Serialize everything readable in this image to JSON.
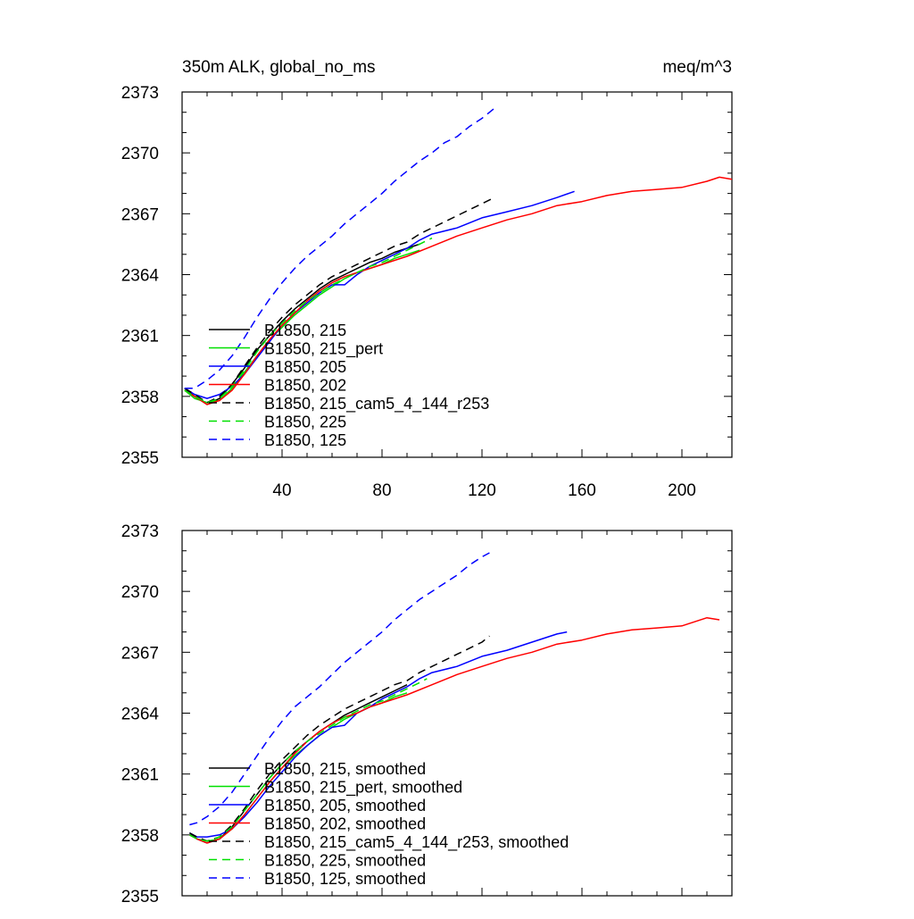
{
  "chart_data": [
    {
      "type": "line",
      "title_left": "350m ALK, global_no_ms",
      "title_right": "meq/m^3",
      "xlim": [
        0,
        220
      ],
      "ylim": [
        2355,
        2373
      ],
      "xticks": [
        40,
        80,
        120,
        160,
        200
      ],
      "yticks": [
        2355,
        2358,
        2361,
        2364,
        2367,
        2370,
        2373
      ],
      "xtick_labels": [
        "40",
        "80",
        "120",
        "160",
        "200"
      ],
      "ytick_labels": [
        "2355",
        "2358",
        "2361",
        "2364",
        "2367",
        "2370",
        "2373"
      ],
      "legend_position": "lower-left",
      "series": [
        {
          "name": "B1850, 215",
          "color": "#000000",
          "dash": "solid",
          "x": [
            1,
            5,
            10,
            15,
            20,
            25,
            30,
            35,
            40,
            45,
            50,
            55,
            60,
            65,
            70,
            75,
            80,
            85,
            90,
            95
          ],
          "y": [
            2358.4,
            2358.0,
            2357.6,
            2357.9,
            2358.6,
            2359.4,
            2360.3,
            2361.0,
            2361.7,
            2362.3,
            2362.8,
            2363.3,
            2363.7,
            2364.0,
            2364.3,
            2364.6,
            2364.8,
            2365.1,
            2365.3,
            2365.5
          ]
        },
        {
          "name": "B1850, 215_pert",
          "color": "#00e000",
          "dash": "solid",
          "x": [
            1,
            5,
            10,
            15,
            20,
            25,
            30,
            35,
            40,
            45,
            50,
            55,
            60,
            65,
            70,
            75,
            80,
            85,
            90,
            95
          ],
          "y": [
            2358.3,
            2357.9,
            2357.7,
            2357.8,
            2358.4,
            2359.2,
            2360.0,
            2360.8,
            2361.4,
            2362.0,
            2362.5,
            2363.0,
            2363.4,
            2363.8,
            2364.1,
            2364.3,
            2364.5,
            2364.8,
            2365.0,
            2365.2
          ]
        },
        {
          "name": "B1850, 205",
          "color": "#0000ff",
          "dash": "solid",
          "x": [
            1,
            5,
            10,
            15,
            20,
            25,
            30,
            35,
            40,
            45,
            50,
            55,
            60,
            65,
            70,
            75,
            80,
            85,
            90,
            95,
            100,
            110,
            120,
            130,
            140,
            150,
            157
          ],
          "y": [
            2358.4,
            2358.1,
            2357.9,
            2358.1,
            2358.5,
            2359.1,
            2359.9,
            2360.7,
            2361.5,
            2362.1,
            2362.6,
            2363.1,
            2363.5,
            2363.5,
            2364.0,
            2364.4,
            2364.7,
            2365.0,
            2365.3,
            2365.7,
            2366.0,
            2366.3,
            2366.8,
            2367.1,
            2367.4,
            2367.8,
            2368.1
          ]
        },
        {
          "name": "B1850, 202",
          "color": "#ff0000",
          "dash": "solid",
          "x": [
            1,
            5,
            10,
            15,
            20,
            25,
            30,
            35,
            40,
            45,
            50,
            55,
            60,
            65,
            70,
            75,
            80,
            90,
            100,
            110,
            120,
            130,
            140,
            150,
            160,
            170,
            180,
            190,
            200,
            210,
            215,
            220
          ],
          "y": [
            2358.3,
            2358.0,
            2357.6,
            2357.8,
            2358.3,
            2359.1,
            2360.0,
            2360.8,
            2361.5,
            2362.1,
            2362.7,
            2363.2,
            2363.6,
            2363.9,
            2364.1,
            2364.3,
            2364.5,
            2364.9,
            2365.4,
            2365.9,
            2366.3,
            2366.7,
            2367.0,
            2367.4,
            2367.6,
            2367.9,
            2368.1,
            2368.2,
            2368.3,
            2368.6,
            2368.8,
            2368.7
          ]
        },
        {
          "name": "B1850, 215_cam5_4_144_r253",
          "color": "#000000",
          "dash": "dashed",
          "x": [
            1,
            5,
            10,
            15,
            20,
            25,
            30,
            35,
            40,
            45,
            50,
            55,
            60,
            65,
            70,
            75,
            80,
            85,
            90,
            95,
            100,
            105,
            110,
            115,
            120,
            125
          ],
          "y": [
            2358.4,
            2358.1,
            2357.7,
            2358.0,
            2358.6,
            2359.5,
            2360.4,
            2361.2,
            2361.9,
            2362.5,
            2363.0,
            2363.5,
            2363.9,
            2364.2,
            2364.5,
            2364.8,
            2365.1,
            2365.4,
            2365.6,
            2366.0,
            2366.3,
            2366.6,
            2366.9,
            2367.2,
            2367.5,
            2367.8
          ]
        },
        {
          "name": "B1850, 225",
          "color": "#00e000",
          "dash": "dashed",
          "x": [
            1,
            5,
            10,
            15,
            20,
            25,
            30,
            35,
            40,
            45,
            50,
            55,
            60,
            65,
            70,
            75,
            80,
            85,
            90,
            95,
            100
          ],
          "y": [
            2358.3,
            2358.0,
            2357.7,
            2357.9,
            2358.5,
            2359.3,
            2360.2,
            2361.0,
            2361.6,
            2362.2,
            2362.7,
            2363.1,
            2363.5,
            2363.8,
            2364.1,
            2364.4,
            2364.6,
            2364.9,
            2365.2,
            2365.5,
            2365.8
          ]
        },
        {
          "name": "B1850, 125",
          "color": "#0000ff",
          "dash": "dashed",
          "x": [
            1,
            5,
            10,
            15,
            20,
            25,
            30,
            35,
            40,
            45,
            50,
            55,
            60,
            65,
            70,
            75,
            80,
            85,
            90,
            95,
            100,
            105,
            110,
            115,
            120,
            125
          ],
          "y": [
            2358.4,
            2358.4,
            2358.8,
            2359.3,
            2360.0,
            2360.9,
            2361.9,
            2362.8,
            2363.6,
            2364.3,
            2364.9,
            2365.4,
            2365.9,
            2366.5,
            2367.0,
            2367.5,
            2368.0,
            2368.6,
            2369.1,
            2369.6,
            2370.0,
            2370.5,
            2370.8,
            2371.3,
            2371.7,
            2372.2
          ]
        }
      ]
    },
    {
      "type": "line",
      "xlim": [
        0,
        220
      ],
      "ylim": [
        2355,
        2373
      ],
      "xticks": [
        40,
        80,
        120,
        160,
        200
      ],
      "yticks": [
        2355,
        2358,
        2361,
        2364,
        2367,
        2370,
        2373
      ],
      "ytick_labels": [
        "2355",
        "2358",
        "2361",
        "2364",
        "2367",
        "2370",
        "2373"
      ],
      "legend_position": "lower-left",
      "series": [
        {
          "name": "B1850, 215, smoothed",
          "color": "#000000",
          "dash": "solid",
          "x": [
            3,
            6,
            10,
            15,
            20,
            25,
            30,
            35,
            40,
            45,
            50,
            55,
            60,
            65,
            70,
            75,
            80,
            85,
            90
          ],
          "y": [
            2358.1,
            2357.8,
            2357.6,
            2357.8,
            2358.4,
            2359.2,
            2360.0,
            2360.8,
            2361.5,
            2362.1,
            2362.6,
            2363.1,
            2363.5,
            2363.9,
            2364.2,
            2364.5,
            2364.8,
            2365.1,
            2365.4
          ]
        },
        {
          "name": "B1850, 215_pert, smoothed",
          "color": "#00e000",
          "dash": "solid",
          "x": [
            3,
            6,
            10,
            15,
            20,
            25,
            30,
            35,
            40,
            45,
            50,
            55,
            60,
            65,
            70,
            75,
            80,
            85,
            90
          ],
          "y": [
            2358.0,
            2357.8,
            2357.7,
            2357.8,
            2358.3,
            2359.0,
            2359.8,
            2360.6,
            2361.3,
            2361.9,
            2362.4,
            2362.9,
            2363.3,
            2363.7,
            2364.0,
            2364.3,
            2364.5,
            2364.8,
            2365.0
          ]
        },
        {
          "name": "B1850, 205, smoothed",
          "color": "#0000ff",
          "dash": "solid",
          "x": [
            3,
            6,
            10,
            15,
            20,
            25,
            30,
            35,
            40,
            45,
            50,
            55,
            60,
            65,
            70,
            75,
            80,
            85,
            90,
            95,
            100,
            110,
            120,
            130,
            140,
            150,
            154
          ],
          "y": [
            2358.1,
            2357.9,
            2357.9,
            2358.0,
            2358.3,
            2358.9,
            2359.6,
            2360.4,
            2361.1,
            2361.8,
            2362.4,
            2362.9,
            2363.3,
            2363.4,
            2364.0,
            2364.3,
            2364.7,
            2365.0,
            2365.3,
            2365.7,
            2366.0,
            2366.3,
            2366.8,
            2367.1,
            2367.5,
            2367.9,
            2368.0
          ]
        },
        {
          "name": "B1850, 202, smoothed",
          "color": "#ff0000",
          "dash": "solid",
          "x": [
            3,
            6,
            10,
            15,
            20,
            25,
            30,
            35,
            40,
            45,
            50,
            55,
            60,
            65,
            70,
            75,
            80,
            90,
            100,
            110,
            120,
            130,
            140,
            150,
            160,
            170,
            180,
            190,
            200,
            210,
            215
          ],
          "y": [
            2358.0,
            2357.8,
            2357.6,
            2357.8,
            2358.3,
            2359.0,
            2359.8,
            2360.6,
            2361.3,
            2362.0,
            2362.6,
            2363.1,
            2363.5,
            2363.8,
            2364.0,
            2364.3,
            2364.5,
            2364.9,
            2365.4,
            2365.9,
            2366.3,
            2366.7,
            2367.0,
            2367.4,
            2367.6,
            2367.9,
            2368.1,
            2368.2,
            2368.3,
            2368.7,
            2368.6
          ]
        },
        {
          "name": "B1850, 215_cam5_4_144_r253, smoothed",
          "color": "#000000",
          "dash": "dashed",
          "x": [
            3,
            6,
            10,
            15,
            20,
            25,
            30,
            35,
            40,
            45,
            50,
            55,
            60,
            65,
            70,
            75,
            80,
            85,
            90,
            95,
            100,
            105,
            110,
            115,
            120,
            123
          ],
          "y": [
            2358.1,
            2357.9,
            2357.7,
            2357.9,
            2358.5,
            2359.3,
            2360.2,
            2361.0,
            2361.7,
            2362.3,
            2362.9,
            2363.4,
            2363.8,
            2364.2,
            2364.5,
            2364.8,
            2365.1,
            2365.4,
            2365.6,
            2366.0,
            2366.3,
            2366.6,
            2366.9,
            2367.2,
            2367.5,
            2367.8
          ]
        },
        {
          "name": "B1850, 225, smoothed",
          "color": "#00e000",
          "dash": "dashed",
          "x": [
            3,
            6,
            10,
            15,
            20,
            25,
            30,
            35,
            40,
            45,
            50,
            55,
            60,
            65,
            70,
            75,
            80,
            85,
            90,
            95,
            98
          ],
          "y": [
            2358.0,
            2357.8,
            2357.7,
            2357.9,
            2358.4,
            2359.2,
            2360.0,
            2360.8,
            2361.5,
            2362.1,
            2362.6,
            2363.0,
            2363.4,
            2363.8,
            2364.1,
            2364.4,
            2364.6,
            2364.9,
            2365.2,
            2365.5,
            2365.7
          ]
        },
        {
          "name": "B1850, 125, smoothed",
          "color": "#0000ff",
          "dash": "dashed",
          "x": [
            3,
            6,
            10,
            15,
            20,
            25,
            30,
            35,
            40,
            45,
            50,
            55,
            60,
            65,
            70,
            75,
            80,
            85,
            90,
            95,
            100,
            105,
            110,
            115,
            120,
            123
          ],
          "y": [
            2358.5,
            2358.6,
            2358.9,
            2359.4,
            2360.1,
            2361.0,
            2361.9,
            2362.8,
            2363.6,
            2364.3,
            2364.8,
            2365.3,
            2365.9,
            2366.5,
            2367.0,
            2367.5,
            2368.0,
            2368.6,
            2369.1,
            2369.6,
            2370.0,
            2370.4,
            2370.8,
            2371.3,
            2371.7,
            2371.9
          ]
        }
      ]
    }
  ]
}
